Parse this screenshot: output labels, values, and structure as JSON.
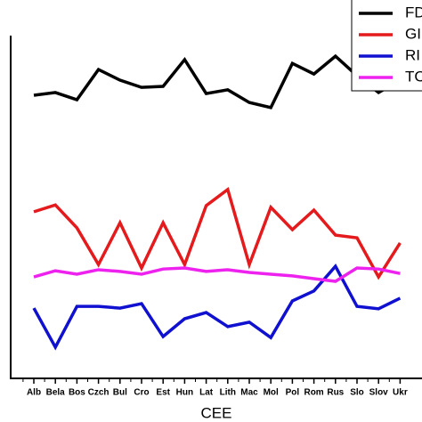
{
  "chart_data": {
    "type": "line",
    "xlabel": "CEE",
    "categories": [
      "Alb",
      "Bela",
      "Bos",
      "Czch",
      "Bul",
      "Cro",
      "Est",
      "Hun",
      "Lat",
      "Lith",
      "Mac",
      "Mol",
      "Pol",
      "Rom",
      "Rus",
      "Slo",
      "Slov",
      "Ukr"
    ],
    "ylim": [
      0,
      100
    ],
    "series": [
      {
        "name": "FD",
        "color": "#000000",
        "values": [
          82.6,
          83.4,
          81.3,
          90.1,
          87.0,
          84.9,
          85.2,
          93.0,
          83.1,
          84.2,
          80.5,
          79.0,
          91.9,
          88.8,
          94.0,
          88.3,
          83.4,
          87.0
        ]
      },
      {
        "name": "GI",
        "color": "#e41a1c",
        "values": [
          48.6,
          50.6,
          43.9,
          33.2,
          45.4,
          32.2,
          45.4,
          33.2,
          50.4,
          55.1,
          33.2,
          49.9,
          43.4,
          49.1,
          41.8,
          41.0,
          29.6,
          39.5
        ]
      },
      {
        "name": "RI",
        "color": "#1010d0",
        "values": [
          20.5,
          9.1,
          21.0,
          21.0,
          20.5,
          21.8,
          12.2,
          17.4,
          19.2,
          15.1,
          16.4,
          11.9,
          22.6,
          25.5,
          32.7,
          21.0,
          20.3,
          23.4
        ]
      },
      {
        "name": "TC",
        "color": "#ee22ee",
        "values": [
          29.6,
          31.4,
          30.4,
          31.7,
          31.2,
          30.4,
          31.9,
          32.2,
          31.2,
          31.7,
          30.9,
          30.4,
          29.9,
          29.1,
          28.3,
          32.2,
          31.9,
          30.6
        ]
      }
    ]
  }
}
